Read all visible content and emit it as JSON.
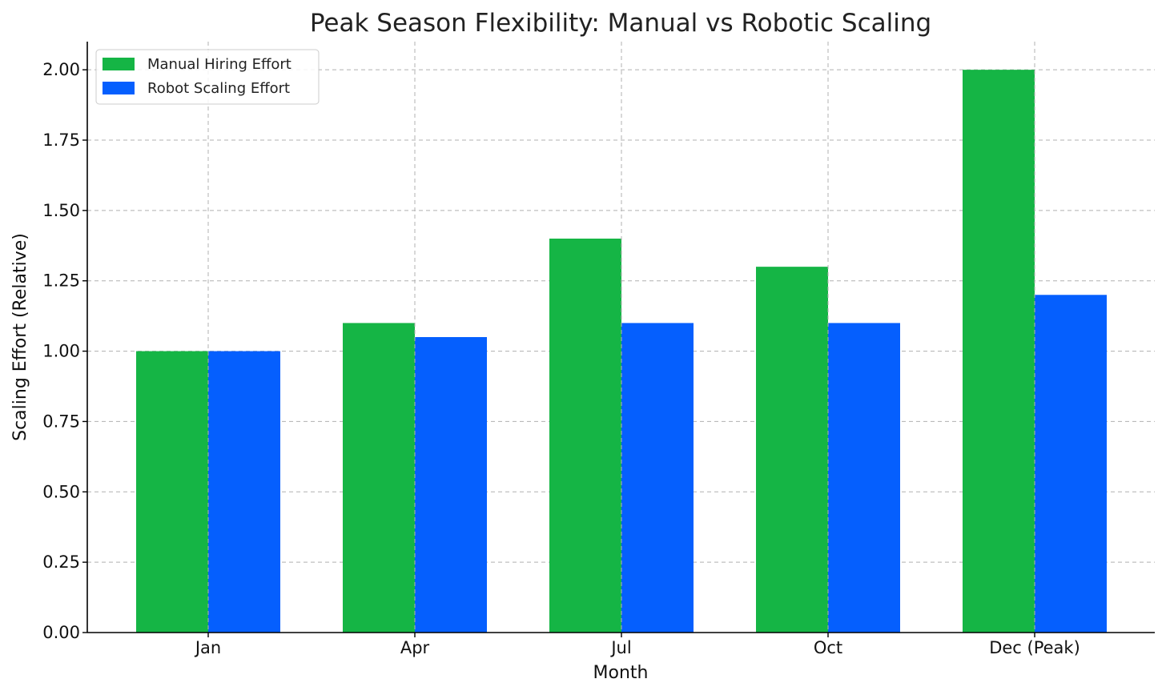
{
  "chart_data": {
    "type": "bar",
    "title": "Peak Season Flexibility: Manual vs Robotic Scaling",
    "xlabel": "Month",
    "ylabel": "Scaling Effort (Relative)",
    "categories": [
      "Jan",
      "Apr",
      "Jul",
      "Oct",
      "Dec (Peak)"
    ],
    "series": [
      {
        "name": "Manual Hiring Effort",
        "color": "#15b545",
        "values": [
          1.0,
          1.1,
          1.4,
          1.3,
          2.0
        ]
      },
      {
        "name": "Robot Scaling Effort",
        "color": "#055ffe",
        "values": [
          1.0,
          1.05,
          1.1,
          1.1,
          1.2
        ]
      }
    ],
    "ylim": [
      0,
      2.1
    ],
    "yticks": [
      "0.00",
      "0.25",
      "0.50",
      "0.75",
      "1.00",
      "1.25",
      "1.50",
      "1.75",
      "2.00"
    ],
    "grid": true,
    "legend_position": "top-left"
  }
}
